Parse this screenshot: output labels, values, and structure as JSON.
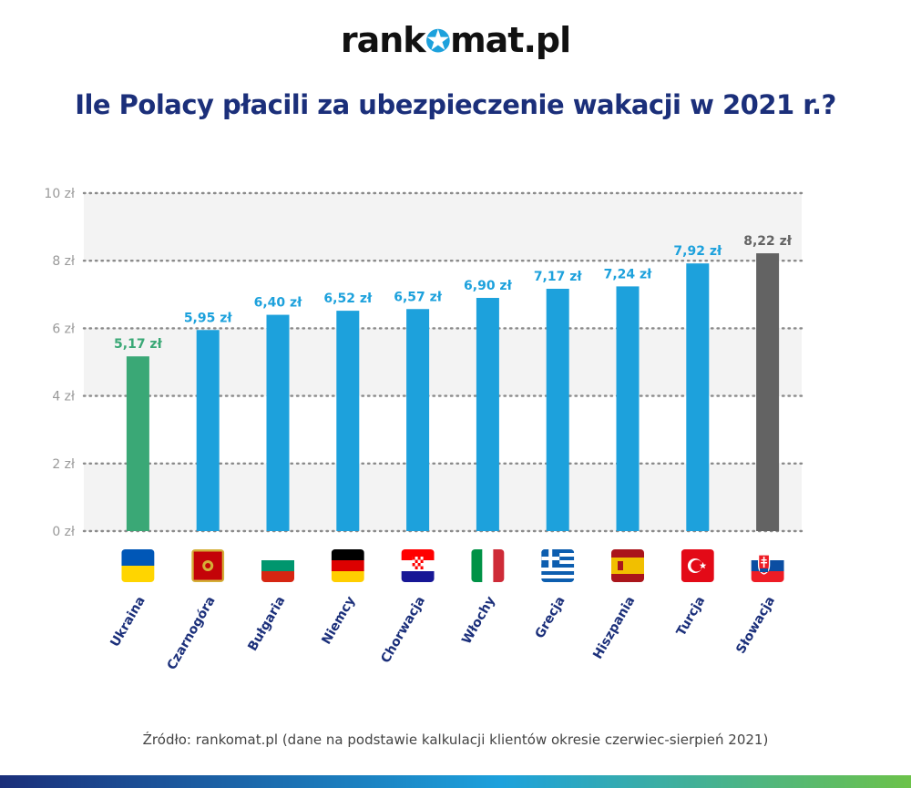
{
  "brand": {
    "name_prefix": "rank",
    "name_suffix": "mat.pl"
  },
  "title": "Ile Polacy płacili za ubezpieczenie wakacji w 2021 r.?",
  "source": "Źródło: rankomat.pl (dane na podstawie kalkulacji klientów okresie czerwiec-sierpień 2021)",
  "colors": {
    "lowest": "#3aa876",
    "normal": "#1da1dc",
    "highest": "#636363",
    "title": "#1b2f7a",
    "axis_text": "#999999"
  },
  "chart_data": {
    "type": "bar",
    "categories": [
      "Ukraina",
      "Czarnogóra",
      "Bułgaria",
      "Niemcy",
      "Chorwacja",
      "Włochy",
      "Grecja",
      "Hiszpania",
      "Turcja",
      "Słowacja"
    ],
    "values": [
      5.17,
      5.95,
      6.4,
      6.52,
      6.57,
      6.9,
      7.17,
      7.24,
      7.92,
      8.22
    ],
    "value_labels": [
      "5,17 zł",
      "5,95 zł",
      "6,40 zł",
      "6,52 zł",
      "6,57 zł",
      "6,90 zł",
      "7,17 zł",
      "7,24 zł",
      "7,92 zł",
      "8,22 zł"
    ],
    "bar_styles": [
      "lowest",
      "normal",
      "normal",
      "normal",
      "normal",
      "normal",
      "normal",
      "normal",
      "normal",
      "highest"
    ],
    "flags": [
      "ua",
      "me",
      "bg",
      "de",
      "hr",
      "it",
      "gr",
      "es",
      "tr",
      "sk"
    ],
    "yticks": [
      0,
      2,
      4,
      6,
      8,
      10
    ],
    "ytick_labels": [
      "0 zł",
      "2 zł",
      "4 zł",
      "6 zł",
      "8 zł",
      "10 zł"
    ],
    "ylim": [
      0,
      10
    ],
    "grid": "dotted",
    "legend": "none"
  }
}
